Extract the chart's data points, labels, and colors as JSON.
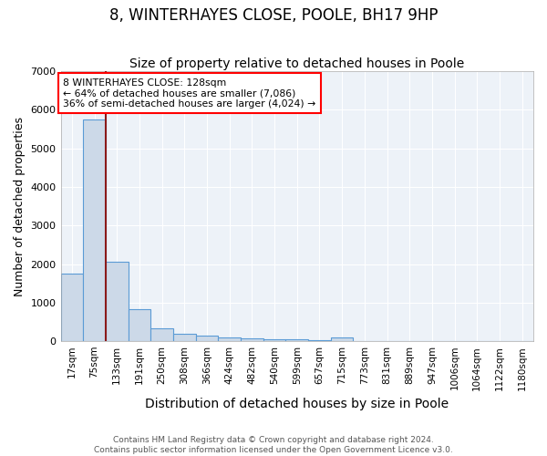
{
  "title": "8, WINTERHAYES CLOSE, POOLE, BH17 9HP",
  "subtitle": "Size of property relative to detached houses in Poole",
  "xlabel": "Distribution of detached houses by size in Poole",
  "ylabel": "Number of detached properties",
  "categories": [
    "17sqm",
    "75sqm",
    "133sqm",
    "191sqm",
    "250sqm",
    "308sqm",
    "366sqm",
    "424sqm",
    "482sqm",
    "540sqm",
    "599sqm",
    "657sqm",
    "715sqm",
    "773sqm",
    "831sqm",
    "889sqm",
    "947sqm",
    "1006sqm",
    "1064sqm",
    "1122sqm",
    "1180sqm"
  ],
  "values": [
    1750,
    5750,
    2050,
    820,
    340,
    195,
    145,
    95,
    65,
    45,
    40,
    35,
    90,
    0,
    0,
    0,
    0,
    0,
    0,
    0,
    0
  ],
  "bar_color": "#ccd9e8",
  "bar_edge_color": "#5b9bd5",
  "vline_color": "#8b1a1a",
  "annotation_text": "8 WINTERHAYES CLOSE: 128sqm\n← 64% of detached houses are smaller (7,086)\n36% of semi-detached houses are larger (4,024) →",
  "footer1": "Contains HM Land Registry data © Crown copyright and database right 2024.",
  "footer2": "Contains public sector information licensed under the Open Government Licence v3.0.",
  "ylim": [
    0,
    7000
  ],
  "background_color": "#edf2f8",
  "grid_color": "#ffffff",
  "title_fontsize": 12,
  "subtitle_fontsize": 10,
  "tick_fontsize": 7.5,
  "ylabel_fontsize": 9,
  "xlabel_fontsize": 10,
  "footer_fontsize": 6.5
}
